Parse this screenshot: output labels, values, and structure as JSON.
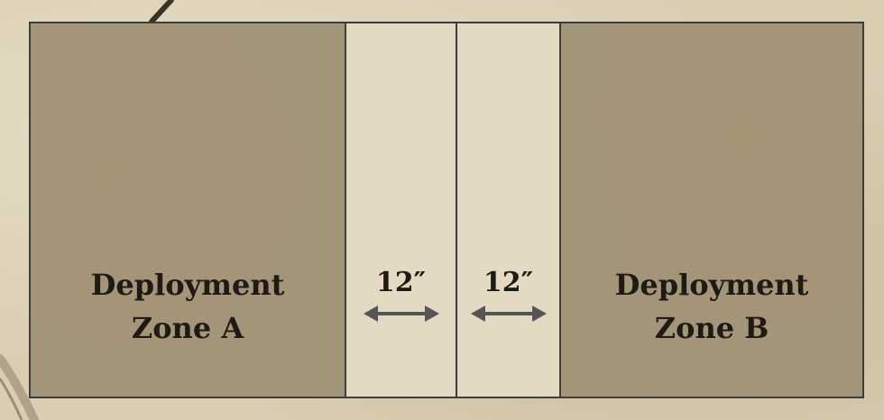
{
  "zones": {
    "a": {
      "line1": "Deployment",
      "line2": "Zone A"
    },
    "b": {
      "line1": "Deployment",
      "line2": "Zone B"
    }
  },
  "distances": [
    {
      "label": "12″"
    },
    {
      "label": "12″"
    }
  ],
  "colors": {
    "zone_fill": "#a3957a",
    "no_mans_land_fill": "#e4dac4",
    "border": "#3d3d3d",
    "text": "#1f1a14",
    "arrow": "#555555"
  }
}
